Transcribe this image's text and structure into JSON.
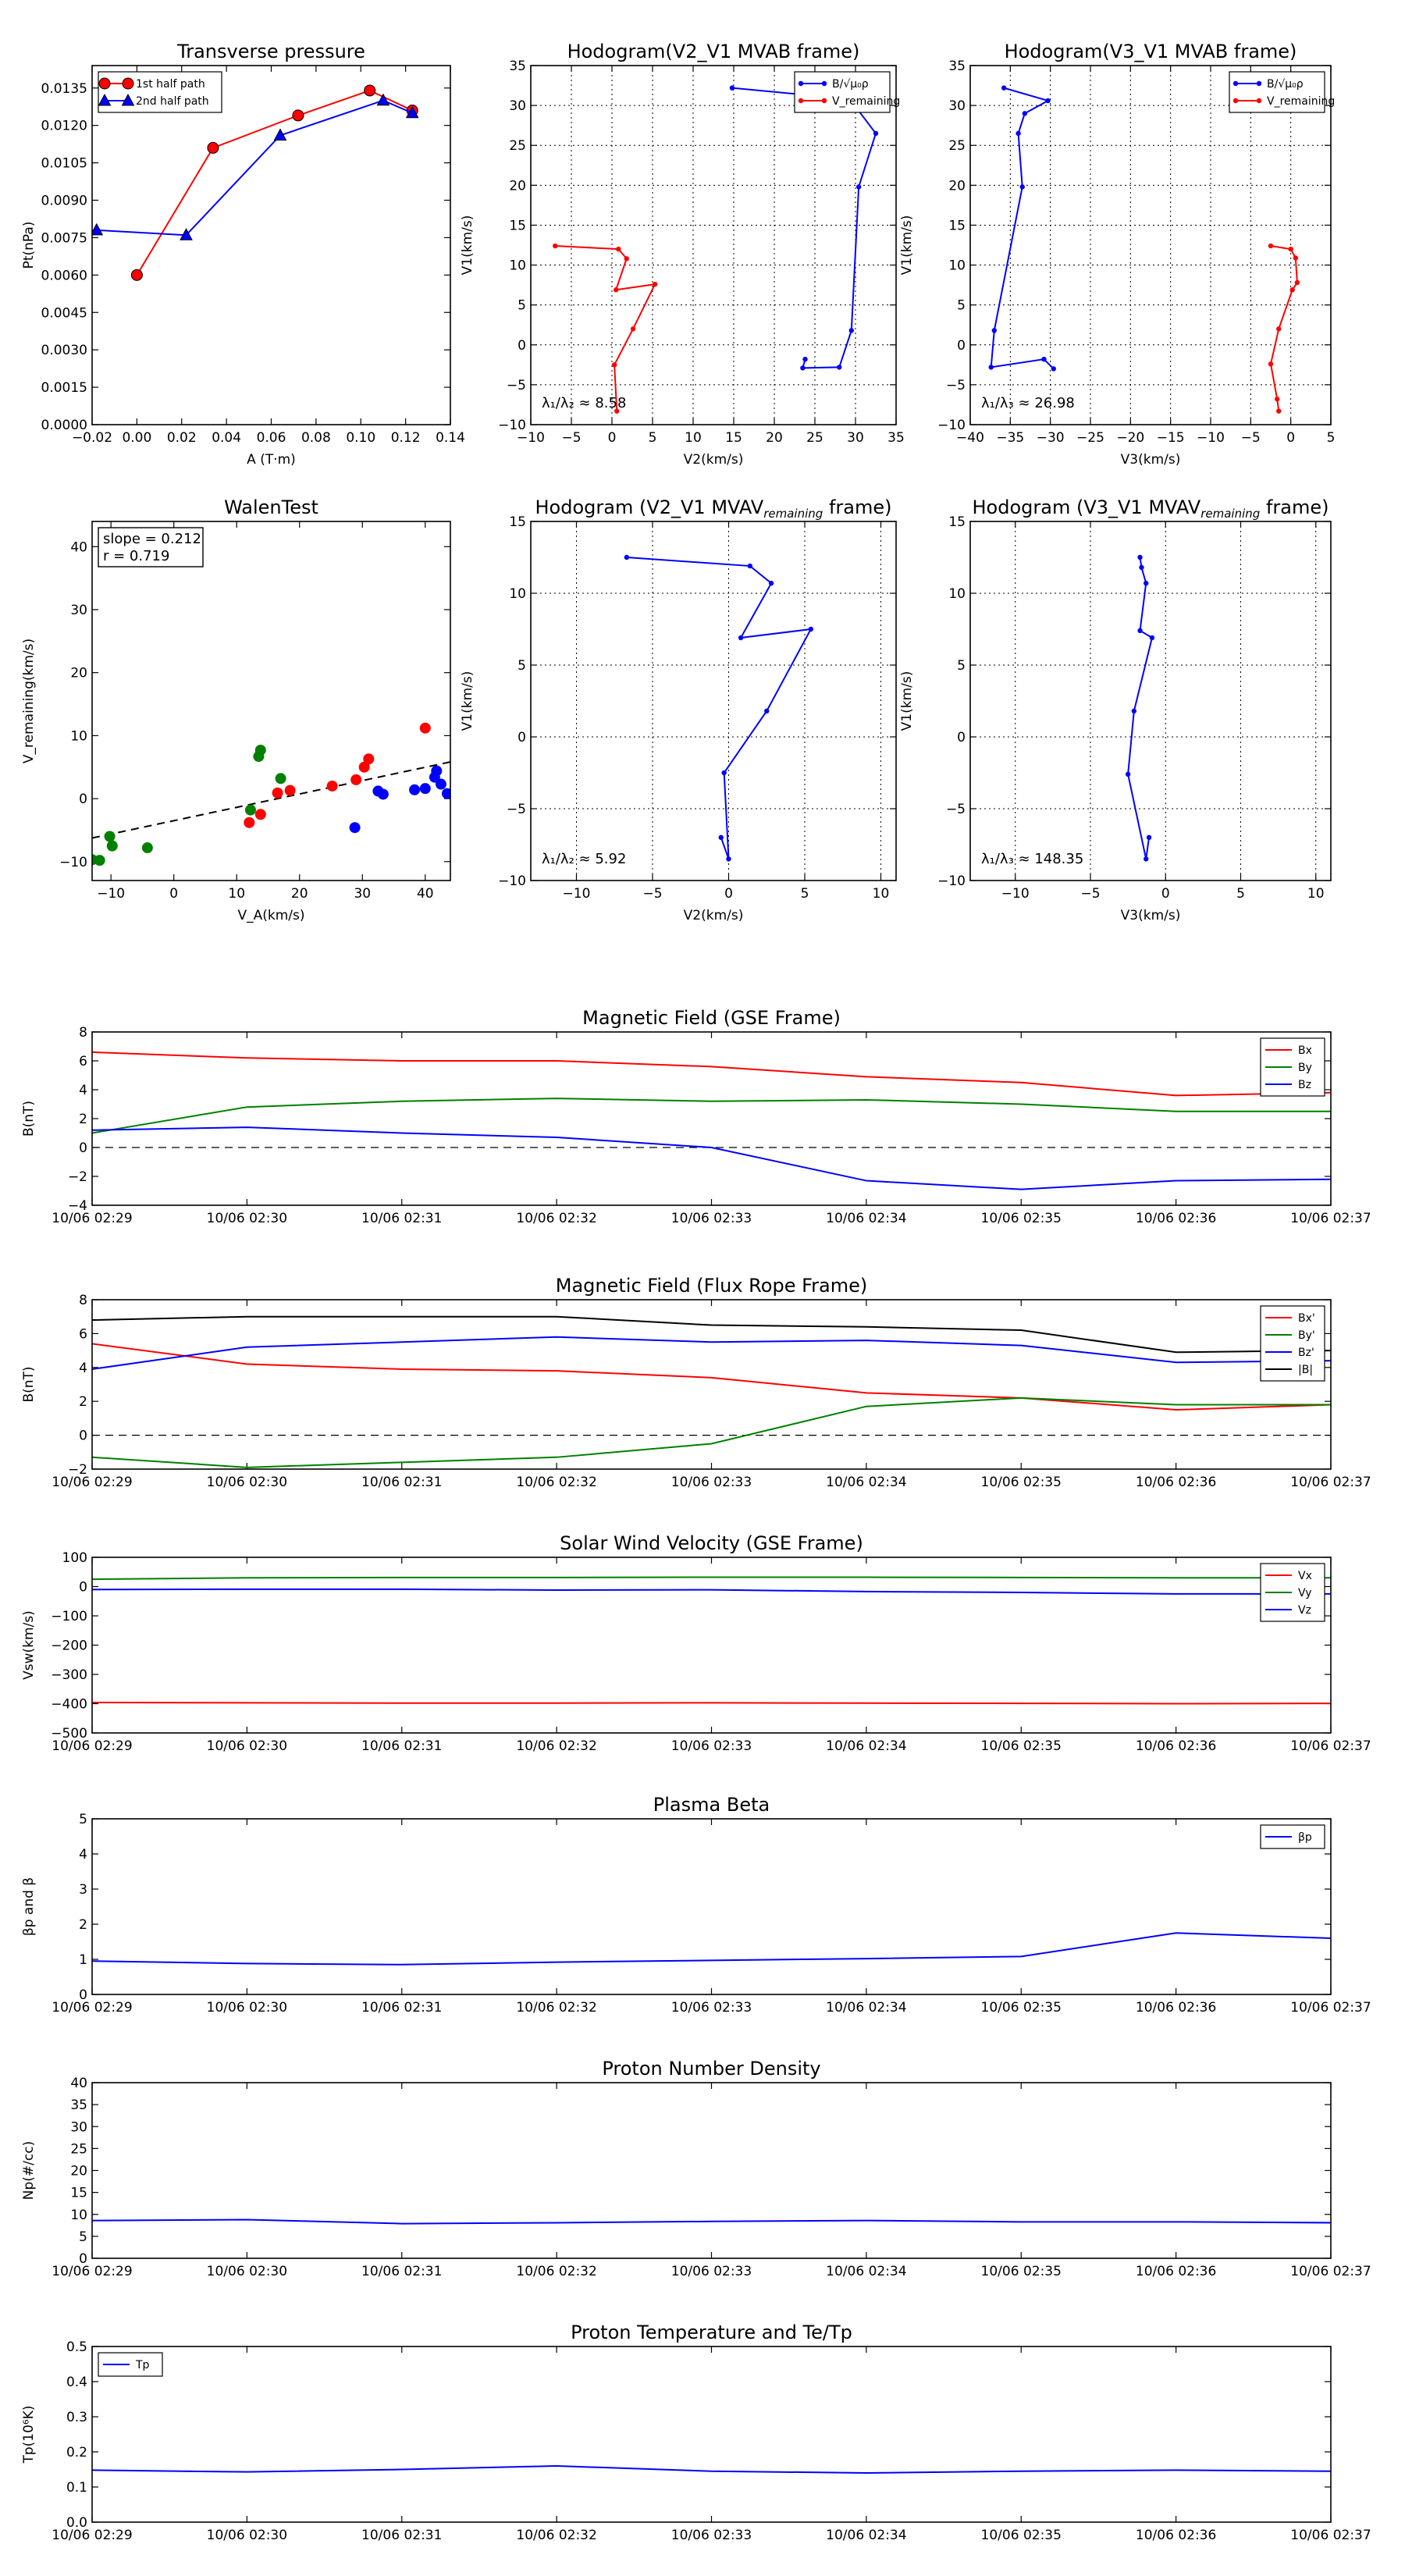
{
  "chart_data": [
    {
      "id": "tp",
      "type": "line",
      "title": "Transverse pressure",
      "xlabel": "A (T·m)",
      "ylabel": "Pt(nPa)",
      "xlim": [
        -0.02,
        0.14
      ],
      "ylim": [
        0,
        0.0144
      ],
      "xticks": [
        "−0.02",
        "0.00",
        "0.02",
        "0.04",
        "0.06",
        "0.08",
        "0.10",
        "0.12",
        "0.14"
      ],
      "yticks": [
        "0.0000",
        "0.0015",
        "0.0030",
        "0.0045",
        "0.0060",
        "0.0075",
        "0.0090",
        "0.0105",
        "0.0120",
        "0.0135"
      ],
      "legend": {
        "position": "upper-left",
        "entries": [
          "1st half path",
          "2nd half path"
        ]
      },
      "series": [
        {
          "name": "1st half path",
          "color": "#ff0000",
          "marker": "circle",
          "x": [
            0.0,
            0.034,
            0.072,
            0.104,
            0.123
          ],
          "y": [
            0.006,
            0.0111,
            0.0124,
            0.0134,
            0.0126
          ]
        },
        {
          "name": "2nd half path",
          "color": "#0000ff",
          "marker": "triangle",
          "x": [
            -0.018,
            0.022,
            0.064,
            0.11,
            0.123
          ],
          "y": [
            0.0078,
            0.0076,
            0.0116,
            0.013,
            0.0125
          ]
        }
      ]
    },
    {
      "id": "h1",
      "type": "line",
      "title": "Hodogram(V2_V1 MVAB frame)",
      "xlabel": "V2(km/s)",
      "ylabel": "V1(km/s)",
      "xlim": [
        -10,
        35
      ],
      "ylim": [
        -10,
        35
      ],
      "grid": true,
      "xticks": [
        "−10",
        "−5",
        "0",
        "5",
        "10",
        "15",
        "20",
        "25",
        "30",
        "35"
      ],
      "yticks": [
        "−10",
        "−5",
        "0",
        "5",
        "10",
        "15",
        "20",
        "25",
        "30",
        "35"
      ],
      "annotation": "λ₁/λ₂ ≈ 8.58",
      "legend": {
        "position": "upper-right",
        "entries": [
          "B/√μ₀ρ",
          "V_remaining"
        ]
      },
      "series": [
        {
          "name": "B/√μ₀ρ",
          "color": "#0000ff",
          "x": [
            14.8,
            29.3,
            32.5,
            30.4,
            29.5,
            28.0,
            23.5,
            23.8
          ],
          "y": [
            32.2,
            30.8,
            26.5,
            19.8,
            1.8,
            -2.8,
            -2.9,
            -1.8
          ]
        },
        {
          "name": "V_remaining",
          "color": "#ff0000",
          "x": [
            -7.0,
            0.8,
            1.8,
            0.5,
            5.3,
            2.6,
            0.3,
            0.6
          ],
          "y": [
            12.4,
            12.0,
            10.8,
            6.9,
            7.6,
            2.0,
            -2.5,
            -8.3
          ]
        }
      ]
    },
    {
      "id": "h2",
      "type": "line",
      "title": "Hodogram(V3_V1 MVAB frame)",
      "xlabel": "V3(km/s)",
      "ylabel": "V1(km/s)",
      "xlim": [
        -40,
        5
      ],
      "ylim": [
        -10,
        35
      ],
      "grid": true,
      "xticks": [
        "−40",
        "−35",
        "−30",
        "−25",
        "−20",
        "−15",
        "−10",
        "−5",
        "0",
        "5"
      ],
      "yticks": [
        "−10",
        "−5",
        "0",
        "5",
        "10",
        "15",
        "20",
        "25",
        "30",
        "35"
      ],
      "annotation": "λ₁/λ₃ ≈ 26.98",
      "legend": {
        "position": "upper-right",
        "entries": [
          "B/√μ₀ρ",
          "V_remaining"
        ]
      },
      "series": [
        {
          "name": "B/√μ₀ρ",
          "color": "#0000ff",
          "x": [
            -35.8,
            -30.3,
            -33.2,
            -34.0,
            -33.5,
            -37.0,
            -37.4,
            -30.8,
            -29.6
          ],
          "y": [
            32.2,
            30.6,
            29.0,
            26.5,
            19.8,
            1.8,
            -2.8,
            -1.8,
            -3.0
          ]
        },
        {
          "name": "V_remaining",
          "color": "#ff0000",
          "x": [
            -2.5,
            0.0,
            0.6,
            0.8,
            0.2,
            -1.5,
            -2.5,
            -1.7,
            -1.5
          ],
          "y": [
            12.4,
            12.0,
            10.9,
            7.8,
            6.9,
            2.0,
            -2.4,
            -6.8,
            -8.3
          ]
        }
      ]
    },
    {
      "id": "walen",
      "type": "scatter",
      "title": "WalenTest",
      "xlabel": "V_A(km/s)",
      "ylabel": "V_remaining(km/s)",
      "xlim": [
        -13,
        44
      ],
      "ylim": [
        -13,
        44
      ],
      "xticks": [
        "−10",
        "0",
        "10",
        "20",
        "30",
        "40"
      ],
      "yticks": [
        "−10",
        "0",
        "10",
        "20",
        "30",
        "40"
      ],
      "annotation": [
        "slope = 0.212",
        "r = 0.719"
      ],
      "fit": {
        "slope": 0.212,
        "intercept": -3.5
      },
      "series": [
        {
          "name": "green",
          "color": "#008000",
          "x": [
            -13.0,
            -11.8,
            -10.2,
            -9.8,
            -4.2,
            12.2,
            13.5,
            13.8,
            17.0
          ],
          "y": [
            -9.7,
            -9.8,
            -6.0,
            -7.5,
            -7.8,
            -1.8,
            6.7,
            7.7,
            3.2
          ]
        },
        {
          "name": "red",
          "color": "#ff0000",
          "x": [
            12.0,
            13.8,
            16.5,
            18.5,
            25.2,
            29.0,
            30.3,
            31.0,
            40.0
          ],
          "y": [
            -3.8,
            -2.5,
            0.9,
            1.3,
            2.0,
            3.0,
            5.0,
            6.3,
            11.2
          ]
        },
        {
          "name": "blue",
          "color": "#0000ff",
          "x": [
            28.8,
            32.5,
            33.3,
            38.3,
            40.0,
            41.5,
            41.8,
            42.5,
            43.5
          ],
          "y": [
            -4.6,
            1.2,
            0.7,
            1.4,
            1.6,
            3.4,
            4.4,
            2.3,
            0.8
          ]
        }
      ]
    },
    {
      "id": "h3",
      "type": "line",
      "title": "Hodogram (V2_V1 MVAV",
      "title_sub": "remaining",
      "title_end": " frame)",
      "xlabel": "V2(km/s)",
      "ylabel": "V1(km/s)",
      "xlim": [
        -13,
        11
      ],
      "ylim": [
        -10,
        15
      ],
      "grid": true,
      "xticks": [
        "−10",
        "−5",
        "0",
        "5",
        "10"
      ],
      "yticks": [
        "−10",
        "−5",
        "0",
        "5",
        "10",
        "15"
      ],
      "annotation": "λ₁/λ₂ ≈ 5.92",
      "series": [
        {
          "name": "V1 vs V2",
          "color": "#0000ff",
          "x": [
            -6.7,
            1.4,
            2.8,
            0.8,
            5.4,
            2.5,
            -0.3,
            0.0,
            -0.5
          ],
          "y": [
            12.5,
            11.9,
            10.7,
            6.9,
            7.5,
            1.8,
            -2.5,
            -8.5,
            -7.0
          ]
        }
      ]
    },
    {
      "id": "h4",
      "type": "line",
      "title": "Hodogram (V3_V1 MVAV",
      "title_sub": "remaining",
      "title_end": " frame)",
      "xlabel": "V3(km/s)",
      "ylabel": "V1(km/s)",
      "xlim": [
        -13,
        11
      ],
      "ylim": [
        -10,
        15
      ],
      "grid": true,
      "xticks": [
        "−10",
        "−5",
        "0",
        "5",
        "10"
      ],
      "yticks": [
        "−10",
        "−5",
        "0",
        "5",
        "10",
        "15"
      ],
      "annotation": "λ₁/λ₃ ≈ 148.35",
      "series": [
        {
          "name": "V1 vs V3",
          "color": "#0000ff",
          "x": [
            -1.7,
            -1.6,
            -1.3,
            -1.7,
            -0.9,
            -2.1,
            -2.5,
            -1.3,
            -1.1
          ],
          "y": [
            12.5,
            11.8,
            10.7,
            7.4,
            6.9,
            1.8,
            -2.6,
            -8.5,
            -7.0
          ]
        }
      ]
    },
    {
      "id": "mag_gse",
      "type": "line",
      "title": "Magnetic Field (GSE Frame)",
      "ylabel": "B(nT)",
      "ylim": [
        -4,
        8
      ],
      "yticks": [
        "−4",
        "−2",
        "0",
        "2",
        "4",
        "6",
        "8"
      ],
      "xticks": [
        "10/06 02:29",
        "10/06 02:30",
        "10/06 02:31",
        "10/06 02:32",
        "10/06 02:33",
        "10/06 02:34",
        "10/06 02:35",
        "10/06 02:36",
        "10/06 02:37"
      ],
      "zero_line": true,
      "legend": {
        "position": "upper-right",
        "entries": [
          "Bx",
          "By",
          "Bz"
        ]
      },
      "series": [
        {
          "name": "Bx",
          "color": "#ff0000",
          "values": [
            6.6,
            6.2,
            6.0,
            6.0,
            5.6,
            4.9,
            4.5,
            3.6,
            3.8
          ]
        },
        {
          "name": "By",
          "color": "#008000",
          "values": [
            1.0,
            2.8,
            3.2,
            3.4,
            3.2,
            3.3,
            3.0,
            2.5,
            2.5
          ]
        },
        {
          "name": "Bz",
          "color": "#0000ff",
          "values": [
            1.2,
            1.4,
            1.0,
            0.7,
            0.0,
            -2.3,
            -2.9,
            -2.3,
            -2.2
          ]
        }
      ]
    },
    {
      "id": "mag_fr",
      "type": "line",
      "title": "Magnetic Field (Flux Rope Frame)",
      "ylabel": "B(nT)",
      "ylim": [
        -2,
        8
      ],
      "yticks": [
        "−2",
        "0",
        "2",
        "4",
        "6",
        "8"
      ],
      "xticks": [
        "10/06 02:29",
        "10/06 02:30",
        "10/06 02:31",
        "10/06 02:32",
        "10/06 02:33",
        "10/06 02:34",
        "10/06 02:35",
        "10/06 02:36",
        "10/06 02:37"
      ],
      "zero_line": true,
      "legend": {
        "position": "upper-right",
        "entries": [
          "Bx'",
          "By'",
          "Bz'",
          "|B|"
        ]
      },
      "series": [
        {
          "name": "Bx'",
          "color": "#ff0000",
          "values": [
            5.4,
            4.2,
            3.9,
            3.8,
            3.4,
            2.5,
            2.2,
            1.5,
            1.8
          ]
        },
        {
          "name": "By'",
          "color": "#008000",
          "values": [
            -1.3,
            -1.9,
            -1.6,
            -1.3,
            -0.5,
            1.7,
            2.2,
            1.8,
            1.8
          ]
        },
        {
          "name": "Bz'",
          "color": "#0000ff",
          "values": [
            3.9,
            5.2,
            5.5,
            5.8,
            5.5,
            5.6,
            5.3,
            4.3,
            4.4
          ]
        },
        {
          "name": "|B|",
          "color": "#000000",
          "values": [
            6.8,
            7.0,
            7.0,
            7.0,
            6.5,
            6.4,
            6.2,
            4.9,
            5.0
          ]
        }
      ]
    },
    {
      "id": "vsw",
      "type": "line",
      "title": "Solar Wind Velocity (GSE Frame)",
      "ylabel": "Vsw(km/s)",
      "ylim": [
        -500,
        100
      ],
      "yticks": [
        "−500",
        "−400",
        "−300",
        "−200",
        "−100",
        "0",
        "100"
      ],
      "xticks": [
        "10/06 02:29",
        "10/06 02:30",
        "10/06 02:31",
        "10/06 02:32",
        "10/06 02:33",
        "10/06 02:34",
        "10/06 02:35",
        "10/06 02:36",
        "10/06 02:37"
      ],
      "legend": {
        "position": "upper-right",
        "entries": [
          "Vx",
          "Vy",
          "Vz"
        ]
      },
      "series": [
        {
          "name": "Vx",
          "color": "#ff0000",
          "values": [
            -396,
            -397,
            -398,
            -398,
            -397,
            -398,
            -399,
            -400,
            -399
          ]
        },
        {
          "name": "Vy",
          "color": "#008000",
          "values": [
            25,
            30,
            31,
            31,
            32,
            32,
            31,
            30,
            30
          ]
        },
        {
          "name": "Vz",
          "color": "#0000ff",
          "values": [
            -10,
            -9,
            -9,
            -12,
            -11,
            -17,
            -20,
            -25,
            -25
          ]
        }
      ]
    },
    {
      "id": "beta",
      "type": "line",
      "title": "Plasma Beta",
      "ylabel": "βp and β",
      "ylim": [
        0,
        5
      ],
      "yticks": [
        "0",
        "1",
        "2",
        "3",
        "4",
        "5"
      ],
      "xticks": [
        "10/06 02:29",
        "10/06 02:30",
        "10/06 02:31",
        "10/06 02:32",
        "10/06 02:33",
        "10/06 02:34",
        "10/06 02:35",
        "10/06 02:36",
        "10/06 02:37"
      ],
      "legend": {
        "position": "upper-right",
        "entries": [
          "βp"
        ]
      },
      "series": [
        {
          "name": "βp",
          "color": "#0000ff",
          "values": [
            0.95,
            0.88,
            0.85,
            0.92,
            0.97,
            1.02,
            1.08,
            1.75,
            1.6
          ]
        }
      ]
    },
    {
      "id": "np",
      "type": "line",
      "title": "Proton Number Density",
      "ylabel": "Np(#/cc)",
      "ylim": [
        0,
        40
      ],
      "yticks": [
        "0",
        "5",
        "10",
        "15",
        "20",
        "25",
        "30",
        "35",
        "40"
      ],
      "xticks": [
        "10/06 02:29",
        "10/06 02:30",
        "10/06 02:31",
        "10/06 02:32",
        "10/06 02:33",
        "10/06 02:34",
        "10/06 02:35",
        "10/06 02:36",
        "10/06 02:37"
      ],
      "series": [
        {
          "name": "Np",
          "color": "#0000ff",
          "values": [
            8.6,
            8.8,
            7.9,
            8.1,
            8.4,
            8.6,
            8.3,
            8.3,
            8.1
          ]
        }
      ]
    },
    {
      "id": "tpp",
      "type": "line",
      "title": "Proton Temperature and Te/Tp",
      "ylabel": "Tp(10⁶K)",
      "ylim": [
        0,
        0.5
      ],
      "yticks": [
        "0.0",
        "0.1",
        "0.2",
        "0.3",
        "0.4",
        "0.5"
      ],
      "xticks": [
        "10/06 02:29",
        "10/06 02:30",
        "10/06 02:31",
        "10/06 02:32",
        "10/06 02:33",
        "10/06 02:34",
        "10/06 02:35",
        "10/06 02:36",
        "10/06 02:37"
      ],
      "legend": {
        "position": "upper-left",
        "entries": [
          "Tp"
        ]
      },
      "series": [
        {
          "name": "Tp",
          "color": "#0000ff",
          "values": [
            0.148,
            0.143,
            0.15,
            0.16,
            0.145,
            0.14,
            0.145,
            0.148,
            0.145
          ]
        }
      ]
    }
  ]
}
